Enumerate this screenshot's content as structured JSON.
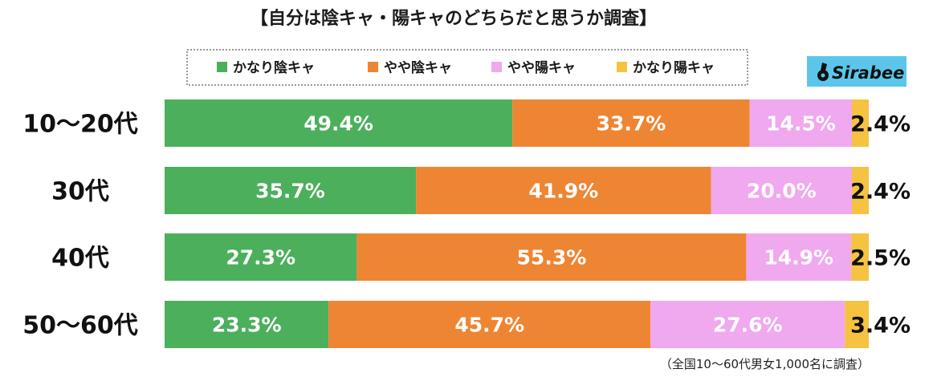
{
  "chart_data": {
    "type": "bar",
    "orientation": "horizontal",
    "stacked": true,
    "title": "【自分は陰キャ・陽キャのどちらだと思うか調査】",
    "categories": [
      "10〜20代",
      "30代",
      "40代",
      "50〜60代"
    ],
    "series": [
      {
        "name": "かなり陰キャ",
        "color": "#4caf5c",
        "values": [
          49.4,
          35.7,
          27.3,
          23.3
        ],
        "labels": [
          "49.4%",
          "35.7%",
          "27.3%",
          "23.3%"
        ]
      },
      {
        "name": "やや陰キャ",
        "color": "#ee8533",
        "values": [
          33.7,
          41.9,
          55.3,
          45.7
        ],
        "labels": [
          "33.7%",
          "41.9%",
          "55.3%",
          "45.7%"
        ]
      },
      {
        "name": "やや陽キャ",
        "color": "#f0a8ee",
        "values": [
          14.5,
          20.0,
          14.9,
          27.6
        ],
        "labels": [
          "14.5%",
          "20.0%",
          "14.9%",
          "27.6%"
        ]
      },
      {
        "name": "かなり陽キャ",
        "color": "#f5c242",
        "values": [
          2.4,
          2.4,
          2.5,
          3.4
        ],
        "labels": [
          "2.4%",
          "2.4%",
          "2.5%",
          "3.4%"
        ]
      }
    ],
    "xlim": [
      0,
      100
    ],
    "legend": "top",
    "footnote": "（全国10〜60代男女1,000名に調査）"
  },
  "logo": {
    "text": "Sirabee",
    "background": "#5bc6ea"
  }
}
